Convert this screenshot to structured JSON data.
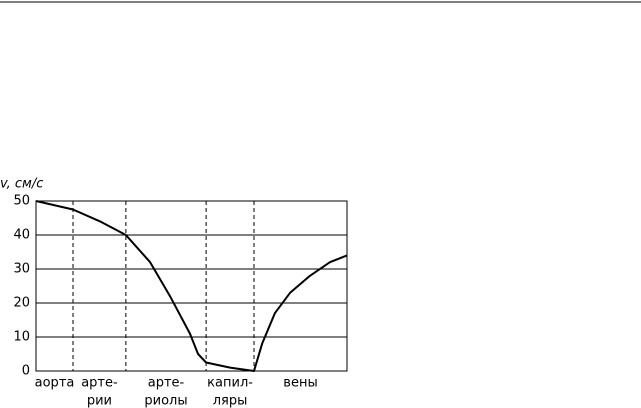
{
  "chart_data": {
    "type": "line",
    "y_label": "v, см/с",
    "xlim": [
      0,
      100
    ],
    "x": [
      0,
      11.9,
      20.6,
      28.9,
      36.7,
      43.1,
      49.5,
      52.1,
      54.7,
      62.4,
      70.1,
      72.7,
      76.8,
      81.7,
      88.1,
      94.5,
      100
    ],
    "values": [
      50,
      47.5,
      44,
      40,
      32,
      22,
      11,
      5,
      2.5,
      1,
      0,
      8,
      17,
      23,
      28,
      32,
      34
    ],
    "color": "#000000",
    "ylim": [
      0,
      50
    ],
    "yticks": [
      0,
      10,
      20,
      30,
      40,
      50
    ],
    "grid": true,
    "dividers": [
      11.9,
      28.9,
      54.7,
      70.1
    ],
    "sections": [
      {
        "lines": [
          "аорта"
        ]
      },
      {
        "lines": [
          "арте-",
          "рии"
        ]
      },
      {
        "lines": [
          "арте-",
          "риолы"
        ]
      },
      {
        "lines": [
          "капил-",
          "ляры"
        ]
      },
      {
        "lines": [
          "вены"
        ]
      }
    ]
  }
}
